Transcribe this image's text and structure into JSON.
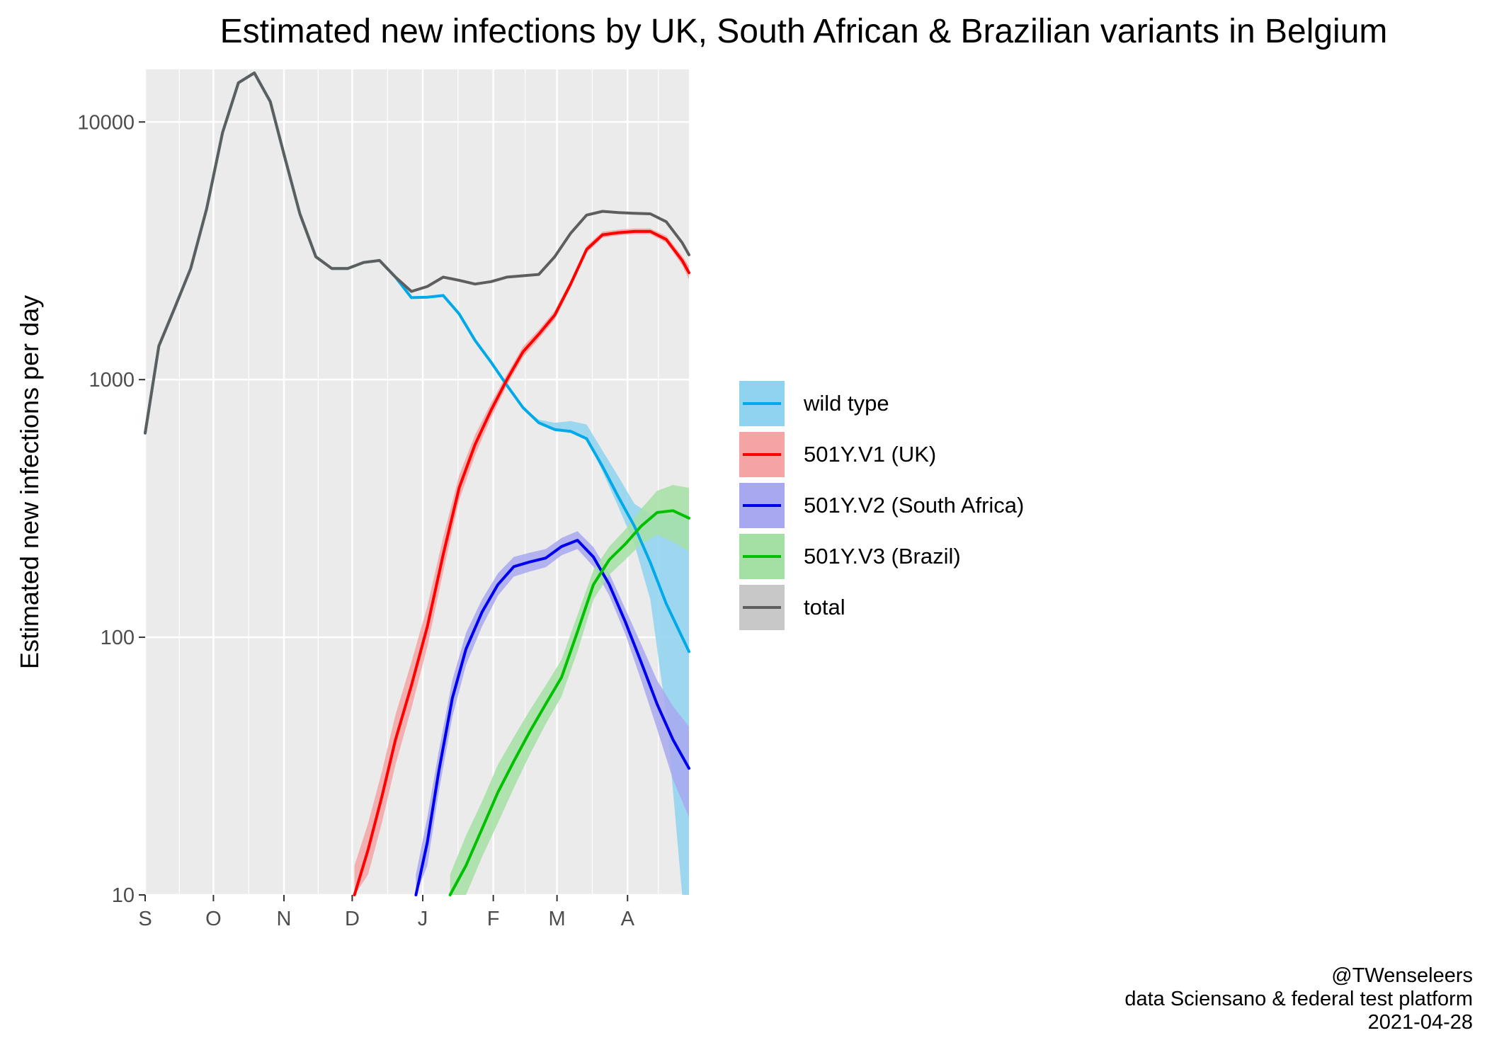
{
  "chart_data": {
    "type": "line",
    "title": "Estimated new infections by UK, South African & Brazilian variants in Belgium",
    "xlabel": "",
    "ylabel": "Estimated new infections per day",
    "y_scale": "log10",
    "ylim": [
      10,
      16000
    ],
    "xlim": [
      "2020-09-01",
      "2021-04-28"
    ],
    "x_tick_labels": [
      {
        "date": "2020-09-01",
        "label": "S"
      },
      {
        "date": "2020-10-01",
        "label": "O"
      },
      {
        "date": "2020-11-01",
        "label": "N"
      },
      {
        "date": "2020-12-01",
        "label": "D"
      },
      {
        "date": "2021-01-01",
        "label": "J"
      },
      {
        "date": "2021-02-01",
        "label": "F"
      },
      {
        "date": "2021-03-01",
        "label": "M"
      },
      {
        "date": "2021-04-01",
        "label": "A"
      }
    ],
    "y_tick_labels": [
      {
        "value": 10,
        "label": "10"
      },
      {
        "value": 100,
        "label": "100"
      },
      {
        "value": 1000,
        "label": "1000"
      },
      {
        "value": 10000,
        "label": "10000"
      }
    ],
    "grid": true,
    "legend_position": "right",
    "series": [
      {
        "name": "wild type",
        "color": "#00a9e8",
        "band_color": "#8fd3f0",
        "x": [
          "2020-09-01",
          "2020-09-07",
          "2020-09-14",
          "2020-09-21",
          "2020-09-28",
          "2020-10-05",
          "2020-10-12",
          "2020-10-19",
          "2020-10-26",
          "2020-11-01",
          "2020-11-08",
          "2020-11-15",
          "2020-11-22",
          "2020-11-29",
          "2020-12-06",
          "2020-12-13",
          "2020-12-20",
          "2020-12-27",
          "2021-01-03",
          "2021-01-10",
          "2021-01-17",
          "2021-01-24",
          "2021-01-31",
          "2021-02-07",
          "2021-02-14",
          "2021-02-21",
          "2021-02-28",
          "2021-03-07",
          "2021-03-14",
          "2021-03-21",
          "2021-03-28",
          "2021-04-04",
          "2021-04-11",
          "2021-04-18",
          "2021-04-25",
          "2021-04-28"
        ],
        "y": [
          620,
          1350,
          1900,
          2700,
          4600,
          9100,
          14200,
          15500,
          12000,
          7500,
          4400,
          3000,
          2700,
          2700,
          2850,
          2900,
          2500,
          2080,
          2090,
          2120,
          1800,
          1420,
          1170,
          950,
          780,
          680,
          640,
          630,
          590,
          460,
          350,
          270,
          195,
          135,
          100,
          88
        ],
        "lower": [
          620,
          1350,
          1900,
          2700,
          4600,
          9100,
          14200,
          15500,
          12000,
          7500,
          4400,
          3000,
          2700,
          2700,
          2850,
          2900,
          2500,
          2080,
          2090,
          2120,
          1800,
          1420,
          1170,
          950,
          780,
          680,
          640,
          630,
          590,
          440,
          320,
          230,
          140,
          50,
          10,
          10
        ],
        "upper": [
          620,
          1350,
          1900,
          2700,
          4600,
          9100,
          14200,
          15500,
          12000,
          7500,
          4400,
          3000,
          2700,
          2700,
          2850,
          2900,
          2500,
          2080,
          2090,
          2120,
          1800,
          1420,
          1170,
          950,
          780,
          700,
          680,
          690,
          670,
          530,
          420,
          330,
          300,
          300,
          300,
          300
        ]
      },
      {
        "name": "501Y.V1 (UK)",
        "color": "#ff0000",
        "band_color": "#f4a4a4",
        "x": [
          "2020-12-02",
          "2020-12-08",
          "2020-12-14",
          "2020-12-20",
          "2020-12-27",
          "2021-01-03",
          "2021-01-10",
          "2021-01-17",
          "2021-01-24",
          "2021-01-31",
          "2021-02-07",
          "2021-02-14",
          "2021-02-21",
          "2021-02-28",
          "2021-03-07",
          "2021-03-14",
          "2021-03-21",
          "2021-03-28",
          "2021-04-04",
          "2021-04-11",
          "2021-04-18",
          "2021-04-25",
          "2021-04-28"
        ],
        "y": [
          10,
          15,
          24,
          40,
          65,
          110,
          210,
          380,
          560,
          760,
          1000,
          1280,
          1500,
          1780,
          2350,
          3200,
          3650,
          3720,
          3760,
          3760,
          3500,
          2900,
          2600
        ],
        "lower": [
          8,
          12,
          19,
          32,
          53,
          92,
          180,
          340,
          510,
          710,
          950,
          1220,
          1440,
          1710,
          2270,
          3100,
          3560,
          3630,
          3670,
          3670,
          3400,
          2780,
          2450
        ],
        "upper": [
          13,
          19,
          30,
          50,
          80,
          132,
          245,
          425,
          610,
          810,
          1050,
          1340,
          1560,
          1850,
          2430,
          3300,
          3750,
          3820,
          3860,
          3860,
          3610,
          3020,
          2760
        ]
      },
      {
        "name": "501Y.V2 (South Africa)",
        "color": "#0000ee",
        "band_color": "#a8a8f0",
        "x": [
          "2020-12-29",
          "2021-01-03",
          "2021-01-08",
          "2021-01-14",
          "2021-01-20",
          "2021-01-27",
          "2021-02-03",
          "2021-02-10",
          "2021-02-17",
          "2021-02-24",
          "2021-03-03",
          "2021-03-10",
          "2021-03-17",
          "2021-03-24",
          "2021-03-31",
          "2021-04-07",
          "2021-04-14",
          "2021-04-21",
          "2021-04-28"
        ],
        "y": [
          10,
          16,
          30,
          58,
          90,
          125,
          160,
          188,
          196,
          203,
          225,
          238,
          205,
          160,
          115,
          80,
          55,
          40,
          31
        ],
        "lower": [
          8,
          13,
          25,
          49,
          78,
          110,
          145,
          172,
          180,
          187,
          208,
          220,
          188,
          145,
          103,
          68,
          44,
          28,
          20
        ],
        "upper": [
          12,
          20,
          36,
          68,
          104,
          140,
          177,
          205,
          213,
          220,
          243,
          258,
          224,
          177,
          129,
          94,
          68,
          54,
          45
        ]
      },
      {
        "name": "501Y.V3 (Brazil)",
        "color": "#00c000",
        "band_color": "#a4e0a4",
        "x": [
          "2021-01-13",
          "2021-01-20",
          "2021-01-27",
          "2021-02-03",
          "2021-02-10",
          "2021-02-17",
          "2021-02-24",
          "2021-03-03",
          "2021-03-10",
          "2021-03-17",
          "2021-03-24",
          "2021-03-31",
          "2021-04-07",
          "2021-04-14",
          "2021-04-21",
          "2021-04-28"
        ],
        "y": [
          10,
          13,
          18,
          25,
          33,
          43,
          55,
          70,
          105,
          160,
          200,
          230,
          270,
          305,
          310,
          290
        ],
        "lower": [
          8,
          10,
          14,
          19,
          26,
          35,
          46,
          59,
          88,
          140,
          175,
          200,
          230,
          250,
          235,
          215
        ],
        "upper": [
          12,
          17,
          23,
          32,
          41,
          52,
          65,
          82,
          122,
          182,
          225,
          262,
          315,
          370,
          390,
          380
        ]
      },
      {
        "name": "total",
        "color": "#5e5e5e",
        "band_color": "#c8c8c8",
        "x": [
          "2020-09-01",
          "2020-09-07",
          "2020-09-14",
          "2020-09-21",
          "2020-09-28",
          "2020-10-05",
          "2020-10-12",
          "2020-10-19",
          "2020-10-26",
          "2020-11-01",
          "2020-11-08",
          "2020-11-15",
          "2020-11-22",
          "2020-11-29",
          "2020-12-06",
          "2020-12-13",
          "2020-12-20",
          "2020-12-27",
          "2021-01-03",
          "2021-01-10",
          "2021-01-17",
          "2021-01-24",
          "2021-01-31",
          "2021-02-07",
          "2021-02-14",
          "2021-02-21",
          "2021-02-28",
          "2021-03-07",
          "2021-03-14",
          "2021-03-21",
          "2021-03-28",
          "2021-04-04",
          "2021-04-11",
          "2021-04-18",
          "2021-04-25",
          "2021-04-28"
        ],
        "y": [
          620,
          1350,
          1900,
          2700,
          4600,
          9100,
          14200,
          15500,
          12000,
          7500,
          4400,
          3000,
          2700,
          2700,
          2850,
          2900,
          2500,
          2200,
          2300,
          2500,
          2430,
          2350,
          2400,
          2500,
          2530,
          2560,
          3000,
          3700,
          4350,
          4500,
          4450,
          4420,
          4400,
          4100,
          3400,
          3050
        ]
      }
    ]
  },
  "caption": {
    "handle": "@TWenseleers",
    "source": "data Sciensano & federal test platform",
    "date": "2021-04-28"
  }
}
